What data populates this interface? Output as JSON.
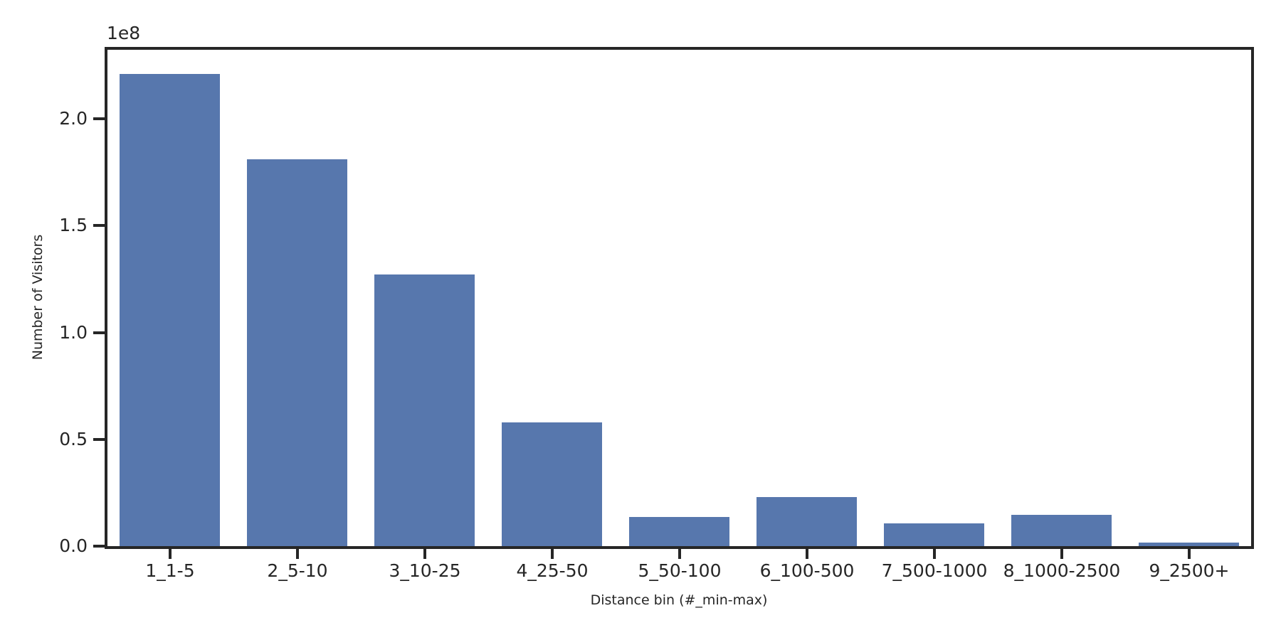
{
  "chart": {
    "background_color": "#ffffff",
    "bar_color": "#5777ad",
    "axis_color": "#262626",
    "text_color": "#262626"
  },
  "chart_data": {
    "type": "bar",
    "title": "",
    "categories": [
      "1_1-5",
      "2_5-10",
      "3_10-25",
      "4_25-50",
      "5_50-100",
      "6_100-500",
      "7_500-1000",
      "8_1000-2500",
      "9_2500+"
    ],
    "values": [
      221000000,
      181000000,
      127000000,
      58000000,
      13700000,
      23000000,
      10700000,
      14700000,
      1700000
    ],
    "xlabel": "Distance bin (#_min-max)",
    "ylabel": "Number of Visitors",
    "offset_text": "1e8",
    "ylim": [
      0,
      233000000
    ],
    "yticks": [
      0,
      50000000,
      100000000,
      150000000,
      200000000
    ],
    "ytick_labels": [
      "0.0",
      "0.5",
      "1.0",
      "1.5",
      "2.0"
    ],
    "grid": false,
    "legend": null
  }
}
